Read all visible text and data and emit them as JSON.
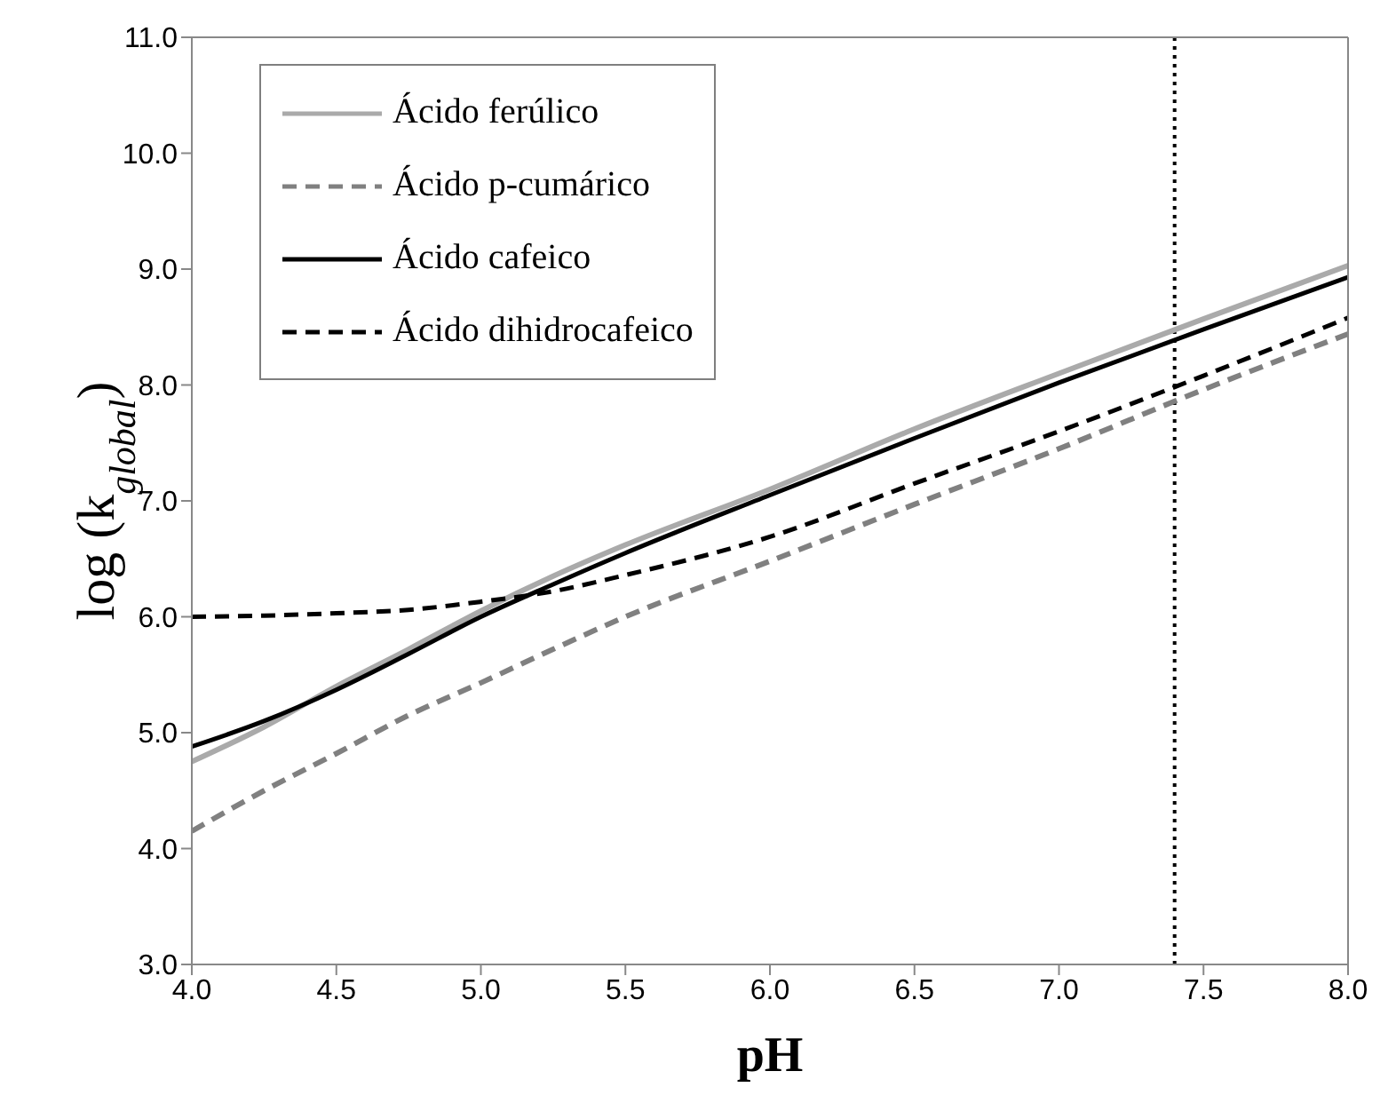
{
  "chart_data": {
    "type": "line",
    "xlabel": "pH",
    "ylabel": "log (k$_{global}$)",
    "x": [
      4.0,
      4.25,
      4.5,
      4.75,
      5.0,
      5.25,
      5.5,
      6.0,
      6.5,
      7.0,
      7.5,
      8.0
    ],
    "series": [
      {
        "name": "Ácido ferúlico",
        "color": "#aaaaaa",
        "line_style": "solid",
        "values": [
          4.75,
          5.05,
          5.4,
          5.72,
          6.05,
          6.35,
          6.62,
          7.1,
          7.62,
          8.1,
          8.57,
          9.03
        ]
      },
      {
        "name": "Ácido p-cumárico",
        "color": "#808080",
        "line_style": "dashed",
        "values": [
          4.15,
          4.5,
          4.82,
          5.15,
          5.43,
          5.72,
          6.0,
          6.48,
          6.97,
          7.45,
          7.96,
          8.44
        ]
      },
      {
        "name": "Ácido cafeico",
        "color": "#000000",
        "line_style": "solid",
        "values": [
          4.88,
          5.1,
          5.37,
          5.68,
          6.0,
          6.28,
          6.55,
          7.05,
          7.54,
          8.02,
          8.48,
          8.93
        ]
      },
      {
        "name": "Ácido dihidrocafeico",
        "color": "#000000",
        "line_style": "dashed",
        "values": [
          6.0,
          6.01,
          6.03,
          6.06,
          6.13,
          6.22,
          6.36,
          6.69,
          7.15,
          7.6,
          8.08,
          8.58
        ]
      }
    ],
    "xlim": [
      4.0,
      8.0
    ],
    "xticks": [
      {
        "value": 4.0,
        "label": "4.0"
      },
      {
        "value": 4.5,
        "label": "4.5"
      },
      {
        "value": 5.0,
        "label": "5.0"
      },
      {
        "value": 5.5,
        "label": "5.5"
      },
      {
        "value": 6.0,
        "label": "6.0"
      },
      {
        "value": 6.5,
        "label": "6.5"
      },
      {
        "value": 7.0,
        "label": "7.0"
      },
      {
        "value": 7.5,
        "label": "7.5"
      },
      {
        "value": 8.0,
        "label": "8.0"
      }
    ],
    "ylim": [
      3.0,
      11.0
    ],
    "yticks": [
      {
        "value": 3.0,
        "label": "3.0"
      },
      {
        "value": 4.0,
        "label": "4.0"
      },
      {
        "value": 5.0,
        "label": "5.0"
      },
      {
        "value": 6.0,
        "label": "6.0"
      },
      {
        "value": 7.0,
        "label": "7.0"
      },
      {
        "value": 8.0,
        "label": "8.0"
      },
      {
        "value": 9.0,
        "label": "9.0"
      },
      {
        "value": 10.0,
        "label": "10.0"
      },
      {
        "value": 11.0,
        "label": "11.0"
      }
    ],
    "ref_lines": [
      {
        "axis": "x",
        "value": 7.4,
        "color": "#000000",
        "line_style": "dotted"
      }
    ],
    "grid": false,
    "legend": "top left",
    "marker": "none"
  }
}
